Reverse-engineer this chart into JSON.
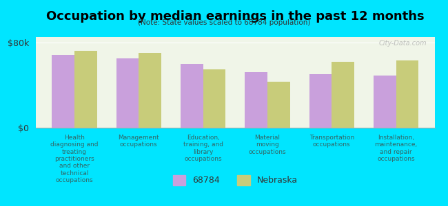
{
  "title": "Occupation by median earnings in the past 12 months",
  "subtitle": "(Note: State values scaled to 68784 population)",
  "background_color": "#00e5ff",
  "plot_bg_color": "#f0f5e8",
  "categories": [
    "Health\ndiagnosing and\ntreating\npractitioners\nand other\ntechnical\noccupations",
    "Management\noccupations",
    "Education,\ntraining, and\nlibrary\noccupations",
    "Material\nmoving\noccupations",
    "Transportation\noccupations",
    "Installation,\nmaintenance,\nand repair\noccupations"
  ],
  "values_local": [
    68000,
    65000,
    60000,
    52000,
    50000,
    49000
  ],
  "values_state": [
    72000,
    70000,
    55000,
    43000,
    62000,
    63000
  ],
  "color_local": "#c9a0dc",
  "color_state": "#c8cc7a",
  "ylim": [
    0,
    85000
  ],
  "yticks": [
    0,
    80000
  ],
  "ytick_labels": [
    "$0",
    "$80k"
  ],
  "legend_local": "68784",
  "legend_state": "Nebraska",
  "watermark": "City-Data.com",
  "bar_width": 0.35
}
